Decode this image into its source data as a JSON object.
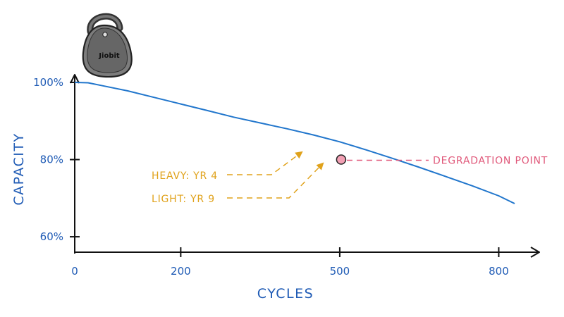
{
  "device": {
    "logo_text": "Jiobit",
    "icon": "tracker-device-icon"
  },
  "chart_data": {
    "type": "line",
    "title": "",
    "xlabel": "CYCLES",
    "ylabel": "CAPACITY",
    "xlim": [
      0,
      830
    ],
    "ylim": [
      56,
      102
    ],
    "x_ticks": [
      0,
      200,
      500,
      800
    ],
    "x_tick_labels": [
      "0",
      "200",
      "500",
      "800"
    ],
    "y_ticks": [
      60,
      80,
      100
    ],
    "y_tick_labels": [
      "60%",
      "80%",
      "100%"
    ],
    "grid": false,
    "series": [
      {
        "color": "#2176cc",
        "x": [
          0,
          25,
          50,
          100,
          150,
          200,
          250,
          300,
          350,
          400,
          450,
          500,
          550,
          600,
          650,
          700,
          750,
          800,
          830
        ],
        "y": [
          100,
          99.9,
          99.2,
          97.8,
          96.1,
          94.4,
          92.7,
          91.0,
          89.5,
          88.0,
          86.4,
          84.6,
          82.5,
          80.3,
          78.0,
          75.6,
          73.2,
          70.6,
          68.6
        ]
      }
    ],
    "annotations": {
      "degradation_point": {
        "label": "DEGRADATION POINT",
        "x": 500,
        "y": 80,
        "color": "#e0587a"
      },
      "heavy": {
        "label": "HEAVY: YR 4",
        "color": "#e0a21b",
        "target_x": 450,
        "target_y": 81
      },
      "light": {
        "label": "LIGHT: YR 9",
        "color": "#e0a21b",
        "target_x": 493,
        "target_y": 80
      }
    },
    "colors": {
      "axis": "#111111",
      "labels": "#1f5bb5"
    }
  }
}
